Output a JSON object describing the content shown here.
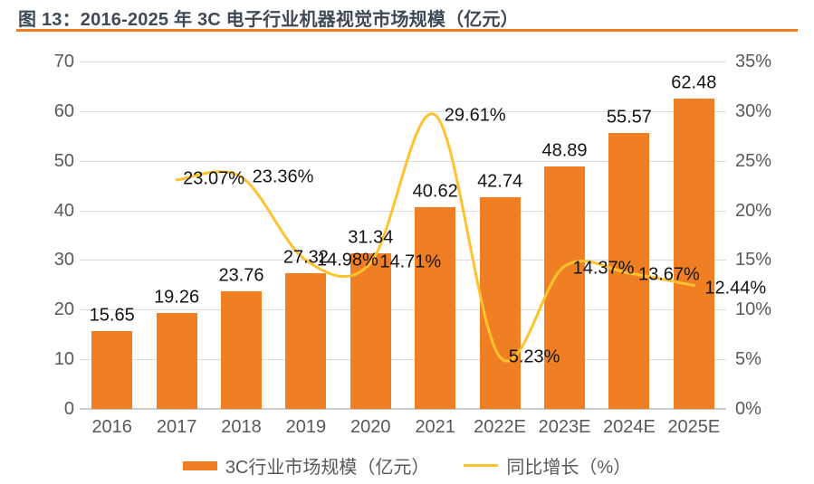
{
  "header": {
    "title": "图 13：2016-2025 年 3C 电子行业机器视觉市场规模（亿元）"
  },
  "chart_data": {
    "type": "bar+line",
    "title": "2016-2025 年 3C 电子行业机器视觉市场规模（亿元）",
    "categories": [
      "2016",
      "2017",
      "2018",
      "2019",
      "2020",
      "2021",
      "2022E",
      "2023E",
      "2024E",
      "2025E"
    ],
    "series": [
      {
        "name": "3C行业市场规模（亿元）",
        "type": "bar",
        "axis": "left",
        "values": [
          15.65,
          19.26,
          23.76,
          27.32,
          31.34,
          40.62,
          42.74,
          48.89,
          55.57,
          62.48
        ],
        "color": "#F07F23"
      },
      {
        "name": "同比增长（%）",
        "type": "line",
        "axis": "right",
        "values": [
          null,
          23.07,
          23.36,
          14.98,
          14.71,
          29.61,
          5.23,
          14.37,
          13.67,
          12.44
        ],
        "color": "#FFC22E"
      }
    ],
    "bar_labels": [
      "15.65",
      "19.26",
      "23.76",
      "27.32",
      "31.34",
      "40.62",
      "42.74",
      "48.89",
      "55.57",
      "62.48"
    ],
    "line_labels": [
      null,
      "23.07%",
      "23.36%",
      "14.98%",
      "14.71%",
      "29.61%",
      "5.23%",
      "14.37%",
      "13.67%",
      "12.44%"
    ],
    "left_axis": {
      "min": 0,
      "max": 70,
      "step": 10,
      "ticks": [
        "0",
        "10",
        "20",
        "30",
        "40",
        "50",
        "60",
        "70"
      ]
    },
    "right_axis": {
      "min": 0,
      "max": 35,
      "step": 5,
      "ticks": [
        "0%",
        "5%",
        "10%",
        "15%",
        "20%",
        "25%",
        "30%",
        "35%"
      ]
    },
    "grid": true,
    "legend_position": "bottom",
    "smooth_line": true
  },
  "legend": {
    "bar_label": "3C行业市场规模（亿元）",
    "line_label": "同比增长（%）"
  },
  "colors": {
    "bar": "#F07F23",
    "line": "#FFC22E",
    "title_text": "#3E4A55",
    "title_rule": "#F07F23",
    "axis_text": "#595959",
    "value_text": "#141414",
    "gridline": "#DCDCDC",
    "baseline": "#CBCBCB",
    "background": "#FFFFFF"
  }
}
